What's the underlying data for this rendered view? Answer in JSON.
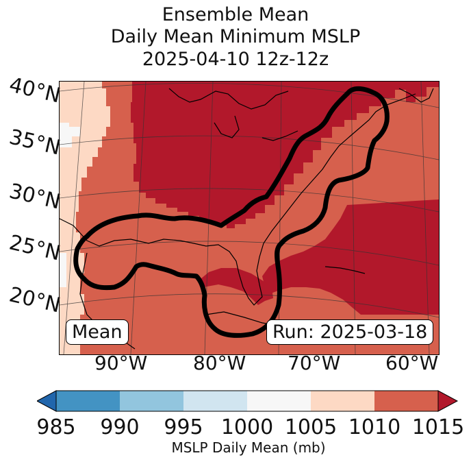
{
  "title": {
    "line1": "Ensemble Mean",
    "line2": "Daily Mean Minimum MSLP",
    "line3": "2025-04-10 12z-12z"
  },
  "map": {
    "lat_labels": [
      "40°N",
      "35°N",
      "30°N",
      "25°N",
      "20°N"
    ],
    "lon_labels": [
      "90°W",
      "80°W",
      "70°W",
      "60°W"
    ],
    "mean_box": "Mean",
    "run_box": "Run: 2025-03-18",
    "fill_colors": {
      "c1000_1005": "#f7f7f7",
      "c1005_1010": "#fdd9c4",
      "c1010_1015": "#d6604d",
      "c1015_plus": "#b2182b"
    },
    "contour_color": "#000000"
  },
  "colorbar": {
    "label": "MSLP Daily Mean (mb)",
    "ticks": [
      "985",
      "990",
      "995",
      "1000",
      "1005",
      "1010",
      "1015"
    ],
    "colors": [
      "#2166ac",
      "#4393c3",
      "#92c5de",
      "#d1e5f0",
      "#f7f7f7",
      "#fdd9c4",
      "#d6604d",
      "#b2182b"
    ]
  }
}
